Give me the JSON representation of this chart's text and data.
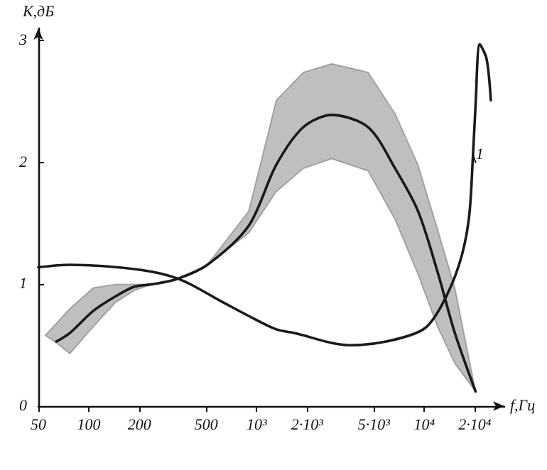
{
  "chart_data": {
    "type": "line",
    "xlabel": "f,Гц",
    "ylabel": "К,дБ",
    "log": "x",
    "grid": false,
    "marker": "none",
    "line_style": "solid",
    "xlim": [
      50,
      30000
    ],
    "ylim": [
      0,
      3.1
    ],
    "xticks": [
      50,
      100,
      200,
      500,
      {
        "value": 1000,
        "label": "10³"
      },
      {
        "value": 2000,
        "label": "2·10³"
      },
      {
        "value": 5000,
        "label": "5·10³"
      },
      {
        "value": 10000,
        "label": "10⁴"
      },
      {
        "value": 20000,
        "label": "2·10⁴"
      }
    ],
    "yticks": [
      0,
      1,
      2,
      3
    ],
    "series": [
      {
        "name": "1",
        "color": "#1a1a1a",
        "x": [
          50,
          77,
          198,
          349,
          615,
          897,
          1310,
          1673,
          3560,
          5930,
          9860,
          12600,
          16100,
          18400,
          19500,
          20200,
          21400,
          23500,
          24900
        ],
        "values": [
          1.14,
          1.16,
          1.12,
          1.04,
          0.86,
          0.74,
          0.63,
          0.6,
          0.5,
          0.53,
          0.63,
          0.82,
          1.16,
          1.53,
          2.06,
          2.47,
          2.97,
          2.85,
          2.51
        ]
      },
      {
        "color": "#1a1a1a",
        "x": [
          55,
          64,
          77,
          106,
          144,
          187,
          238,
          330,
          509,
          897,
          1310,
          1900,
          2800,
          4620,
          6700,
          9170,
          12000,
          15200,
          20200
        ],
        "values": [
          null,
          0.53,
          0.6,
          0.78,
          0.9,
          0.98,
          1.0,
          1.04,
          1.16,
          1.48,
          1.98,
          2.29,
          2.39,
          2.29,
          1.95,
          1.6,
          1.1,
          0.6,
          0.12
        ],
        "upper": [
          0.58,
          0.68,
          0.8,
          0.97,
          1.0,
          1.0,
          1.0,
          1.04,
          1.16,
          1.6,
          2.51,
          2.74,
          2.81,
          2.74,
          2.4,
          1.98,
          1.45,
          0.97,
          0.12
        ],
        "lower": [
          0.58,
          0.52,
          0.43,
          0.65,
          0.85,
          0.95,
          1.0,
          1.04,
          1.16,
          1.42,
          1.76,
          1.95,
          2.03,
          1.93,
          1.53,
          1.08,
          0.65,
          0.35,
          0.12
        ]
      }
    ]
  }
}
